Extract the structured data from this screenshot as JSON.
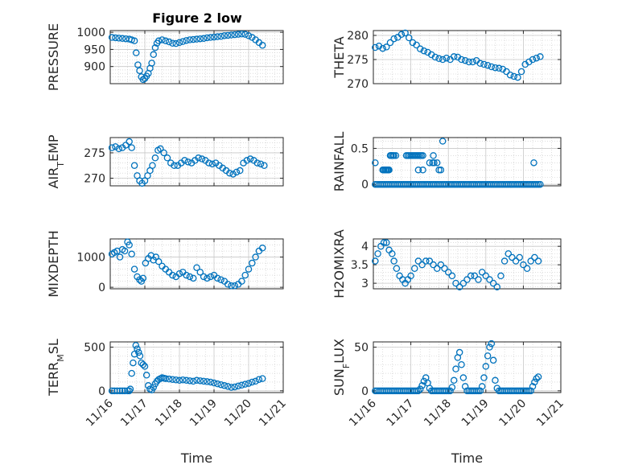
{
  "figure": {
    "title": "Figure 2 low",
    "marker_color": "#0072BD",
    "axis_color": "#262626",
    "grid_color": "#c8c8c8"
  },
  "chart_data": [
    {
      "type": "scatter",
      "ylabel": "PRESSURE",
      "xlabel": "",
      "xlim": [
        0,
        5
      ],
      "ylim": [
        850,
        1005
      ],
      "yticks": [
        900,
        950,
        1000
      ],
      "ytick_labels": [
        "900",
        "950",
        "1000"
      ],
      "show_xticklabels": false,
      "x": [
        0.05,
        0.15,
        0.25,
        0.35,
        0.45,
        0.55,
        0.62,
        0.7,
        0.75,
        0.8,
        0.85,
        0.9,
        0.95,
        1.0,
        1.05,
        1.1,
        1.15,
        1.2,
        1.25,
        1.3,
        1.35,
        1.4,
        1.5,
        1.6,
        1.7,
        1.8,
        1.9,
        2.0,
        2.1,
        2.2,
        2.3,
        2.4,
        2.5,
        2.6,
        2.7,
        2.8,
        2.9,
        3.0,
        3.1,
        3.2,
        3.3,
        3.4,
        3.5,
        3.6,
        3.7,
        3.8,
        3.9,
        4.0,
        4.1,
        4.2,
        4.3,
        4.4
      ],
      "y": [
        985,
        984,
        983,
        982,
        981,
        980,
        978,
        975,
        940,
        905,
        888,
        870,
        862,
        865,
        872,
        880,
        895,
        910,
        935,
        955,
        968,
        975,
        978,
        975,
        972,
        968,
        967,
        970,
        973,
        976,
        978,
        979,
        980,
        981,
        982,
        984,
        985,
        986,
        987,
        988,
        990,
        991,
        992,
        993,
        994,
        995,
        994,
        990,
        985,
        978,
        970,
        962
      ]
    },
    {
      "type": "scatter",
      "ylabel": "THETA",
      "xlabel": "",
      "xlim": [
        0,
        5
      ],
      "ylim": [
        270,
        281
      ],
      "yticks": [
        270,
        275,
        280
      ],
      "ytick_labels": [
        "270",
        "275",
        "280"
      ],
      "show_xticklabels": false,
      "x": [
        0.05,
        0.15,
        0.25,
        0.35,
        0.45,
        0.55,
        0.65,
        0.75,
        0.85,
        0.95,
        1.05,
        1.15,
        1.25,
        1.35,
        1.45,
        1.55,
        1.65,
        1.75,
        1.85,
        1.95,
        2.05,
        2.15,
        2.25,
        2.35,
        2.45,
        2.55,
        2.65,
        2.75,
        2.85,
        2.95,
        3.05,
        3.15,
        3.25,
        3.35,
        3.45,
        3.55,
        3.65,
        3.75,
        3.85,
        3.95,
        4.05,
        4.15,
        4.25,
        4.35,
        4.45
      ],
      "y": [
        277.5,
        277.8,
        277.3,
        277.6,
        278.5,
        279.3,
        279.6,
        280.2,
        280.5,
        279.5,
        278.5,
        278.0,
        277.2,
        276.8,
        276.5,
        276.0,
        275.5,
        275.2,
        275.0,
        275.3,
        275.0,
        275.6,
        275.5,
        275.0,
        274.8,
        274.5,
        274.5,
        274.8,
        274.2,
        274.0,
        273.8,
        273.5,
        273.3,
        273.2,
        273.0,
        272.5,
        271.8,
        271.5,
        271.3,
        272.5,
        274.0,
        274.5,
        275.0,
        275.3,
        275.6
      ]
    },
    {
      "type": "scatter",
      "ylabel": "AIR_TEMP",
      "xlabel": "",
      "xlim": [
        0,
        5
      ],
      "ylim": [
        268.5,
        278
      ],
      "yticks": [
        270,
        275
      ],
      "ytick_labels": [
        "270",
        "275"
      ],
      "show_xticklabels": false,
      "x": [
        0.05,
        0.15,
        0.25,
        0.35,
        0.45,
        0.55,
        0.62,
        0.7,
        0.78,
        0.85,
        0.92,
        1.0,
        1.08,
        1.15,
        1.22,
        1.3,
        1.38,
        1.45,
        1.55,
        1.65,
        1.75,
        1.85,
        1.95,
        2.05,
        2.15,
        2.25,
        2.35,
        2.45,
        2.55,
        2.65,
        2.75,
        2.85,
        2.95,
        3.05,
        3.15,
        3.25,
        3.35,
        3.45,
        3.55,
        3.65,
        3.75,
        3.85,
        3.95,
        4.05,
        4.15,
        4.25,
        4.35,
        4.45
      ],
      "y": [
        276.0,
        276.2,
        275.8,
        276.0,
        276.5,
        277.2,
        276.0,
        272.5,
        270.5,
        269.5,
        269.0,
        269.5,
        270.5,
        271.5,
        272.5,
        274.0,
        275.5,
        275.8,
        275.0,
        274.0,
        273.0,
        272.5,
        272.5,
        273.0,
        273.5,
        273.2,
        273.0,
        273.5,
        274.0,
        273.8,
        273.5,
        273.0,
        272.8,
        273.0,
        272.5,
        272.0,
        271.5,
        271.0,
        270.8,
        271.2,
        271.5,
        273.0,
        273.5,
        273.8,
        273.5,
        273.0,
        272.8,
        272.5
      ]
    },
    {
      "type": "scatter",
      "ylabel": "RAINFALL",
      "xlabel": "",
      "xlim": [
        0,
        5
      ],
      "ylim": [
        -0.02,
        0.65
      ],
      "yticks": [
        0,
        0.5
      ],
      "ytick_labels": [
        "0",
        "0.5"
      ],
      "show_xticklabels": false,
      "x": [
        0.05,
        0.1,
        0.15,
        0.2,
        0.25,
        0.28,
        0.3,
        0.32,
        0.35,
        0.38,
        0.4,
        0.42,
        0.45,
        0.48,
        0.5,
        0.52,
        0.55,
        0.6,
        0.65,
        0.7,
        0.75,
        0.8,
        0.85,
        0.9,
        0.95,
        1.0,
        1.05,
        1.1,
        1.15,
        1.2,
        1.25,
        1.3,
        1.35,
        1.4,
        1.45,
        1.5,
        1.55,
        1.6,
        1.65,
        1.7,
        1.75,
        1.8,
        1.85,
        1.9,
        1.95,
        2.0,
        2.05,
        2.1,
        2.15,
        2.2,
        2.25,
        2.3,
        2.35,
        2.4,
        2.45,
        2.5,
        2.55,
        2.6,
        2.65,
        2.7,
        2.75,
        2.8,
        2.85,
        2.9,
        2.95,
        3.0,
        3.05,
        3.1,
        3.15,
        3.2,
        3.25,
        3.3,
        3.35,
        3.4,
        3.45,
        3.5,
        3.55,
        3.6,
        3.65,
        3.7,
        3.75,
        3.8,
        3.85,
        3.9,
        3.95,
        4.0,
        4.05,
        4.1,
        4.15,
        4.2,
        4.25,
        4.3,
        4.35,
        4.4,
        4.45,
        0.05,
        0.25,
        0.28,
        0.32,
        0.35,
        0.4,
        0.45,
        0.48,
        0.55,
        0.6,
        0.88,
        0.92,
        0.96,
        1.0,
        1.04,
        1.08,
        1.12,
        1.16,
        1.2,
        1.24,
        1.28,
        1.32,
        1.2,
        1.32,
        1.5,
        1.58,
        1.62,
        1.6,
        1.7,
        1.75,
        1.8,
        1.85,
        4.28
      ],
      "y": [
        0,
        0,
        0,
        0,
        0,
        0.2,
        0,
        0.2,
        0,
        0.2,
        0,
        0.2,
        0,
        0.4,
        0,
        0.4,
        0,
        0,
        0,
        0,
        0,
        0,
        0,
        0,
        0,
        0,
        0,
        0,
        0,
        0,
        0,
        0,
        0,
        0,
        0,
        0,
        0,
        0,
        0,
        0,
        0,
        0,
        0,
        0,
        0,
        0,
        0,
        0,
        0,
        0,
        0,
        0,
        0,
        0,
        0,
        0,
        0,
        0,
        0,
        0,
        0,
        0,
        0,
        0,
        0,
        0,
        0,
        0,
        0,
        0,
        0,
        0,
        0,
        0,
        0,
        0,
        0,
        0,
        0,
        0,
        0,
        0,
        0,
        0,
        0,
        0,
        0,
        0,
        0,
        0,
        0,
        0,
        0,
        0,
        0,
        0.3,
        0.2,
        0.2,
        0.2,
        0.2,
        0.2,
        0.4,
        0.4,
        0.4,
        0.4,
        0.4,
        0.4,
        0.4,
        0.4,
        0.4,
        0.4,
        0.4,
        0.4,
        0.4,
        0.4,
        0.4,
        0.4,
        0.2,
        0.2,
        0.3,
        0.3,
        0.3,
        0.4,
        0.3,
        0.2,
        0.2,
        0.6,
        0.3
      ]
    },
    {
      "type": "scatter",
      "ylabel": "MIXDEPTH",
      "xlabel": "",
      "xlim": [
        0,
        5
      ],
      "ylim": [
        -50,
        1600
      ],
      "yticks": [
        0,
        1000
      ],
      "ytick_labels": [
        "0",
        "1000"
      ],
      "show_xticklabels": false,
      "x": [
        0.05,
        0.12,
        0.2,
        0.28,
        0.35,
        0.42,
        0.5,
        0.55,
        0.62,
        0.7,
        0.78,
        0.85,
        0.9,
        0.95,
        1.02,
        1.1,
        1.18,
        1.25,
        1.32,
        1.4,
        1.5,
        1.6,
        1.7,
        1.8,
        1.9,
        2.0,
        2.1,
        2.2,
        2.3,
        2.4,
        2.5,
        2.6,
        2.7,
        2.8,
        2.9,
        3.0,
        3.1,
        3.2,
        3.3,
        3.4,
        3.5,
        3.6,
        3.7,
        3.8,
        3.9,
        4.0,
        4.1,
        4.2,
        4.3,
        4.4
      ],
      "y": [
        1100,
        1150,
        1200,
        1000,
        1250,
        1200,
        1500,
        1400,
        1100,
        600,
        350,
        250,
        200,
        300,
        800,
        950,
        1050,
        900,
        1000,
        850,
        700,
        600,
        500,
        400,
        350,
        450,
        500,
        400,
        350,
        300,
        650,
        500,
        350,
        300,
        350,
        400,
        300,
        250,
        200,
        100,
        50,
        50,
        100,
        200,
        400,
        600,
        800,
        1000,
        1200,
        1300
      ]
    },
    {
      "type": "scatter",
      "ylabel": "H2OMIXRA",
      "xlabel": "",
      "xlim": [
        0,
        5
      ],
      "ylim": [
        2.85,
        4.2
      ],
      "yticks": [
        3,
        3.5,
        4
      ],
      "ytick_labels": [
        "3",
        "3.5",
        "4"
      ],
      "show_xticklabels": false,
      "x": [
        0.05,
        0.12,
        0.2,
        0.28,
        0.35,
        0.42,
        0.5,
        0.55,
        0.62,
        0.7,
        0.78,
        0.85,
        0.92,
        1.0,
        1.1,
        1.2,
        1.3,
        1.4,
        1.5,
        1.6,
        1.7,
        1.8,
        1.9,
        2.0,
        2.1,
        2.2,
        2.3,
        2.4,
        2.5,
        2.6,
        2.7,
        2.8,
        2.9,
        3.0,
        3.1,
        3.2,
        3.3,
        3.4,
        3.5,
        3.6,
        3.7,
        3.8,
        3.9,
        4.0,
        4.1,
        4.2,
        4.3,
        4.4
      ],
      "y": [
        3.6,
        3.8,
        4.0,
        4.1,
        4.1,
        3.9,
        3.8,
        3.6,
        3.4,
        3.2,
        3.1,
        3.0,
        3.1,
        3.2,
        3.4,
        3.6,
        3.5,
        3.6,
        3.6,
        3.5,
        3.4,
        3.5,
        3.4,
        3.3,
        3.2,
        3.0,
        2.9,
        3.0,
        3.1,
        3.2,
        3.2,
        3.1,
        3.3,
        3.2,
        3.1,
        3.0,
        2.9,
        3.2,
        3.6,
        3.8,
        3.7,
        3.6,
        3.7,
        3.5,
        3.4,
        3.6,
        3.7,
        3.6
      ]
    },
    {
      "type": "scatter",
      "ylabel": "TERR_MSL",
      "xlabel": "Time",
      "xlim": [
        0,
        5
      ],
      "ylim": [
        -20,
        560
      ],
      "yticks": [
        0,
        500
      ],
      "ytick_labels": [
        "0",
        "500"
      ],
      "xticks": [
        0,
        1,
        2,
        3,
        4,
        5
      ],
      "xtick_labels": [
        "11/16",
        "11/17",
        "11/18",
        "11/19",
        "11/20",
        "11/21"
      ],
      "show_xticklabels": true,
      "x": [
        0.05,
        0.12,
        0.2,
        0.28,
        0.35,
        0.42,
        0.5,
        0.55,
        0.58,
        0.62,
        0.66,
        0.7,
        0.74,
        0.78,
        0.82,
        0.86,
        0.9,
        0.95,
        1.0,
        1.05,
        1.1,
        1.15,
        1.2,
        1.25,
        1.3,
        1.35,
        1.4,
        1.45,
        1.5,
        1.55,
        1.6,
        1.7,
        1.8,
        1.9,
        2.0,
        2.1,
        2.2,
        2.3,
        2.4,
        2.5,
        2.6,
        2.7,
        2.8,
        2.9,
        3.0,
        3.1,
        3.2,
        3.3,
        3.4,
        3.5,
        3.6,
        3.7,
        3.8,
        3.9,
        4.0,
        4.1,
        4.2,
        4.3,
        4.4
      ],
      "y": [
        0,
        0,
        0,
        0,
        0,
        0,
        0,
        0,
        20,
        200,
        320,
        420,
        520,
        480,
        440,
        400,
        320,
        300,
        280,
        180,
        60,
        20,
        10,
        40,
        80,
        110,
        130,
        140,
        150,
        145,
        140,
        135,
        130,
        125,
        120,
        125,
        120,
        115,
        110,
        120,
        115,
        110,
        105,
        100,
        90,
        80,
        70,
        60,
        50,
        40,
        45,
        55,
        65,
        75,
        85,
        100,
        110,
        130,
        140
      ]
    },
    {
      "type": "scatter",
      "ylabel": "SUN_FLUX",
      "xlabel": "Time",
      "xlim": [
        0,
        5
      ],
      "ylim": [
        -2,
        56
      ],
      "yticks": [
        0,
        50
      ],
      "ytick_labels": [
        "0",
        "50"
      ],
      "xticks": [
        0,
        1,
        2,
        3,
        4,
        5
      ],
      "xtick_labels": [
        "11/16",
        "11/17",
        "11/18",
        "11/19",
        "11/20",
        "11/21"
      ],
      "show_xticklabels": true,
      "x": [
        0.05,
        0.1,
        0.15,
        0.2,
        0.25,
        0.3,
        0.35,
        0.4,
        0.45,
        0.5,
        0.55,
        0.6,
        0.65,
        0.7,
        0.75,
        0.8,
        0.85,
        0.9,
        0.95,
        1.0,
        1.05,
        1.1,
        1.15,
        1.2,
        1.25,
        1.3,
        1.35,
        1.4,
        1.45,
        1.5,
        1.55,
        1.6,
        1.65,
        1.7,
        1.75,
        1.8,
        1.85,
        1.9,
        1.95,
        2.0,
        2.05,
        2.1,
        2.15,
        2.2,
        2.25,
        2.3,
        2.35,
        2.4,
        2.45,
        2.5,
        2.55,
        2.6,
        2.65,
        2.7,
        2.75,
        2.8,
        2.85,
        2.9,
        2.95,
        3.0,
        3.05,
        3.1,
        3.15,
        3.2,
        3.25,
        3.3,
        3.35,
        3.4,
        3.45,
        3.5,
        3.55,
        3.6,
        3.65,
        3.7,
        3.75,
        3.8,
        3.85,
        3.9,
        3.95,
        4.0,
        4.05,
        4.1,
        4.15,
        4.2,
        4.25,
        4.3,
        4.35,
        4.4
      ],
      "y": [
        0,
        0,
        0,
        0,
        0,
        0,
        0,
        0,
        0,
        0,
        0,
        0,
        0,
        0,
        0,
        0,
        0,
        0,
        0,
        0,
        0,
        0,
        0,
        0,
        2,
        6,
        11,
        15,
        9,
        3,
        0,
        0,
        0,
        0,
        0,
        0,
        0,
        0,
        0,
        0,
        0,
        4,
        12,
        25,
        38,
        44,
        30,
        15,
        5,
        0,
        0,
        0,
        0,
        0,
        0,
        0,
        0,
        5,
        15,
        28,
        40,
        50,
        54,
        35,
        12,
        3,
        0,
        0,
        0,
        0,
        0,
        0,
        0,
        0,
        0,
        0,
        0,
        0,
        0,
        0,
        0,
        0,
        0,
        0,
        5,
        10,
        14,
        16
      ]
    }
  ]
}
